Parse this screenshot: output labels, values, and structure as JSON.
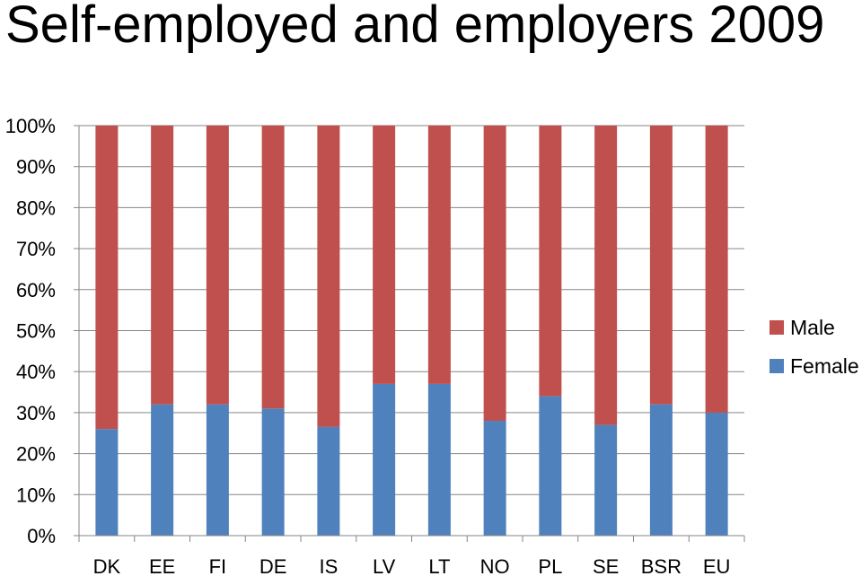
{
  "chart_data": {
    "type": "bar",
    "stacked": true,
    "title": "Self-employed and employers 2009",
    "categories": [
      "DK",
      "EE",
      "FI",
      "DE",
      "IS",
      "LV",
      "LT",
      "NO",
      "PL",
      "SE",
      "BSR",
      "EU"
    ],
    "series": [
      {
        "name": "Female",
        "color": "#4f81bd",
        "values": [
          26,
          32,
          32,
          31,
          26.5,
          37,
          37,
          28,
          34,
          27,
          32,
          30
        ]
      },
      {
        "name": "Male",
        "color": "#c0504d",
        "values": [
          74,
          68,
          68,
          69,
          73.5,
          63,
          63,
          72,
          66,
          73,
          68,
          70
        ]
      }
    ],
    "y_ticks": [
      "0%",
      "10%",
      "20%",
      "30%",
      "40%",
      "50%",
      "60%",
      "70%",
      "80%",
      "90%",
      "100%"
    ],
    "ylim": [
      0,
      100
    ],
    "grid": true,
    "legend_position": "right",
    "legend": [
      "Male",
      "Female"
    ]
  }
}
